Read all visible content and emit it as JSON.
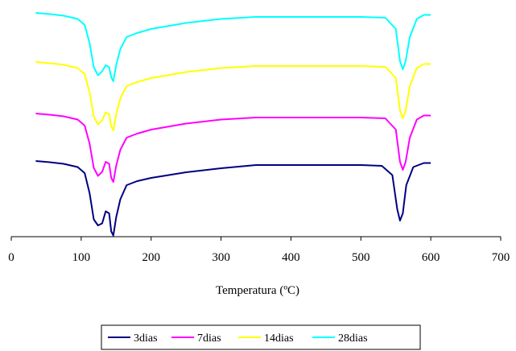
{
  "chart_data": {
    "type": "line",
    "title": "",
    "xlabel": "Temperatura (ºC)",
    "ylabel": "",
    "xlim": [
      0,
      700
    ],
    "x_ticks": [
      0,
      100,
      200,
      300,
      400,
      500,
      600,
      700
    ],
    "y_axis_visible": false,
    "grid": false,
    "legend_position": "bottom",
    "series": [
      {
        "name": "3dias",
        "color": "#000080",
        "x": [
          35,
          55,
          75,
          95,
          105,
          112,
          118,
          124,
          130,
          135,
          140,
          143,
          146,
          150,
          156,
          165,
          180,
          200,
          250,
          300,
          350,
          400,
          450,
          500,
          530,
          545,
          552,
          556,
          560,
          565,
          575,
          590,
          600
        ],
        "y": [
          0.0,
          -0.03,
          -0.07,
          -0.15,
          -0.3,
          -0.8,
          -1.45,
          -1.6,
          -1.55,
          -1.25,
          -1.3,
          -1.75,
          -1.85,
          -1.4,
          -0.95,
          -0.6,
          -0.5,
          -0.42,
          -0.28,
          -0.18,
          -0.1,
          -0.1,
          -0.1,
          -0.1,
          -0.12,
          -0.35,
          -1.2,
          -1.48,
          -1.3,
          -0.6,
          -0.15,
          -0.05,
          -0.05
        ]
      },
      {
        "name": "7dias",
        "color": "#ff00ff",
        "x": [
          35,
          55,
          75,
          95,
          105,
          112,
          118,
          124,
          130,
          135,
          140,
          143,
          146,
          150,
          156,
          165,
          180,
          200,
          250,
          300,
          350,
          400,
          450,
          500,
          535,
          550,
          556,
          560,
          564,
          570,
          580,
          590,
          600
        ],
        "y": [
          0.0,
          -0.03,
          -0.07,
          -0.15,
          -0.3,
          -0.75,
          -1.35,
          -1.55,
          -1.45,
          -1.2,
          -1.25,
          -1.6,
          -1.7,
          -1.3,
          -0.9,
          -0.6,
          -0.5,
          -0.4,
          -0.25,
          -0.15,
          -0.1,
          -0.1,
          -0.1,
          -0.1,
          -0.12,
          -0.4,
          -1.2,
          -1.4,
          -1.2,
          -0.6,
          -0.15,
          -0.05,
          -0.05
        ]
      },
      {
        "name": "14dias",
        "color": "#ffff00",
        "x": [
          35,
          55,
          75,
          95,
          105,
          112,
          118,
          124,
          130,
          135,
          140,
          143,
          146,
          150,
          156,
          165,
          180,
          200,
          250,
          300,
          350,
          400,
          450,
          500,
          535,
          550,
          556,
          560,
          564,
          570,
          580,
          590,
          600
        ],
        "y": [
          0.0,
          -0.03,
          -0.07,
          -0.15,
          -0.3,
          -0.75,
          -1.35,
          -1.55,
          -1.45,
          -1.25,
          -1.3,
          -1.6,
          -1.7,
          -1.3,
          -0.9,
          -0.6,
          -0.5,
          -0.4,
          -0.25,
          -0.15,
          -0.1,
          -0.1,
          -0.1,
          -0.1,
          -0.12,
          -0.4,
          -1.2,
          -1.4,
          -1.2,
          -0.6,
          -0.15,
          -0.05,
          -0.05
        ]
      },
      {
        "name": "28dias",
        "color": "#00ffff",
        "x": [
          35,
          55,
          75,
          95,
          105,
          112,
          118,
          124,
          130,
          135,
          140,
          143,
          146,
          150,
          156,
          165,
          180,
          200,
          250,
          300,
          350,
          400,
          450,
          500,
          535,
          550,
          556,
          560,
          564,
          570,
          580,
          590,
          600
        ],
        "y": [
          0.0,
          -0.03,
          -0.07,
          -0.15,
          -0.3,
          -0.75,
          -1.35,
          -1.55,
          -1.45,
          -1.3,
          -1.35,
          -1.6,
          -1.7,
          -1.3,
          -0.9,
          -0.6,
          -0.5,
          -0.4,
          -0.25,
          -0.15,
          -0.1,
          -0.1,
          -0.1,
          -0.1,
          -0.12,
          -0.4,
          -1.2,
          -1.4,
          -1.2,
          -0.6,
          -0.15,
          -0.05,
          -0.05
        ]
      }
    ]
  }
}
